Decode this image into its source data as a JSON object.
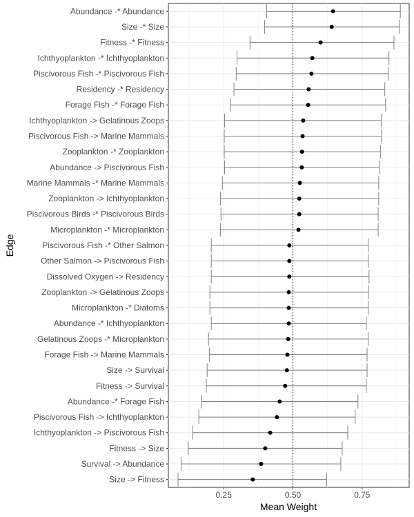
{
  "chart_data": {
    "type": "scatter",
    "subtype": "dot-with-interval",
    "xlabel": "Mean Weight",
    "ylabel": "Edge",
    "xlim": [
      0.05,
      0.92
    ],
    "x_ticks": [
      0.25,
      0.5,
      0.75
    ],
    "x_tick_labels": [
      "0.25",
      "0.50",
      "0.75"
    ],
    "reference_line": 0.5,
    "grid": true,
    "series": [
      {
        "points": [
          {
            "label": "Abundance -* Abundance",
            "mean": 0.645,
            "low": 0.405,
            "high": 0.888
          },
          {
            "label": "Size -* Size",
            "mean": 0.64,
            "low": 0.398,
            "high": 0.885
          },
          {
            "label": "Fitness -* Fitness",
            "mean": 0.6,
            "low": 0.345,
            "high": 0.865
          },
          {
            "label": "Ichthyoplankton -* Ichthyoplankton",
            "mean": 0.57,
            "low": 0.298,
            "high": 0.847
          },
          {
            "label": "Piscivorous Fish -* Piscivorous Fish",
            "mean": 0.567,
            "low": 0.295,
            "high": 0.845
          },
          {
            "label": "Residency -* Residency",
            "mean": 0.557,
            "low": 0.287,
            "high": 0.832
          },
          {
            "label": "Forage Fish -* Forage Fish",
            "mean": 0.555,
            "low": 0.275,
            "high": 0.835
          },
          {
            "label": "Ichthyoplankton -> Gelatinous Zoops",
            "mean": 0.537,
            "low": 0.253,
            "high": 0.82
          },
          {
            "label": "Piscivorous Fish -> Marine Mammals",
            "mean": 0.535,
            "low": 0.252,
            "high": 0.82
          },
          {
            "label": "Zooplankton -* Zooplankton",
            "mean": 0.533,
            "low": 0.252,
            "high": 0.817
          },
          {
            "label": "Abundance -> Piscivorous Fish",
            "mean": 0.532,
            "low": 0.253,
            "high": 0.812
          },
          {
            "label": "Marine Mammals -* Marine Mammals",
            "mean": 0.525,
            "low": 0.245,
            "high": 0.81
          },
          {
            "label": "Zooplankton -> Ichthyoplankton",
            "mean": 0.523,
            "low": 0.238,
            "high": 0.81
          },
          {
            "label": "Piscivorous Birds -* Piscivorous Birds",
            "mean": 0.523,
            "low": 0.24,
            "high": 0.808
          },
          {
            "label": "Microplankton -* Microplankton",
            "mean": 0.52,
            "low": 0.238,
            "high": 0.808
          },
          {
            "label": "Piscivorous Fish -* Other Salmon",
            "mean": 0.487,
            "low": 0.205,
            "high": 0.772
          },
          {
            "label": "Other Salmon -> Piscivorous Fish",
            "mean": 0.487,
            "low": 0.205,
            "high": 0.772
          },
          {
            "label": "Dissolved Oxygen -> Residency",
            "mean": 0.487,
            "low": 0.205,
            "high": 0.775
          },
          {
            "label": "Zooplankton -> Gelatinous Zoops",
            "mean": 0.485,
            "low": 0.2,
            "high": 0.773
          },
          {
            "label": "Microplankton -* Diatoms",
            "mean": 0.485,
            "low": 0.2,
            "high": 0.772
          },
          {
            "label": "Abundance -* Ichthyoplankton",
            "mean": 0.485,
            "low": 0.205,
            "high": 0.765
          },
          {
            "label": "Gelatinous Zoops -* Microplankton",
            "mean": 0.483,
            "low": 0.195,
            "high": 0.772
          },
          {
            "label": "Forage Fish -> Marine Mammals",
            "mean": 0.48,
            "low": 0.198,
            "high": 0.768
          },
          {
            "label": "Size -> Survival",
            "mean": 0.478,
            "low": 0.19,
            "high": 0.768
          },
          {
            "label": "Fitness -> Survival",
            "mean": 0.472,
            "low": 0.187,
            "high": 0.765
          },
          {
            "label": "Abundance -* Forage Fish",
            "mean": 0.452,
            "low": 0.17,
            "high": 0.735
          },
          {
            "label": "Piscivorous Fish -> Ichthyoplankton",
            "mean": 0.442,
            "low": 0.16,
            "high": 0.725
          },
          {
            "label": "Ichthyoplankton -> Piscivorous Fish",
            "mean": 0.418,
            "low": 0.138,
            "high": 0.698
          },
          {
            "label": "Fitness -> Size",
            "mean": 0.4,
            "low": 0.122,
            "high": 0.678
          },
          {
            "label": "Survival -> Abundance",
            "mean": 0.385,
            "low": 0.097,
            "high": 0.673
          },
          {
            "label": "Size -> Fitness",
            "mean": 0.355,
            "low": 0.085,
            "high": 0.622
          }
        ]
      }
    ]
  }
}
